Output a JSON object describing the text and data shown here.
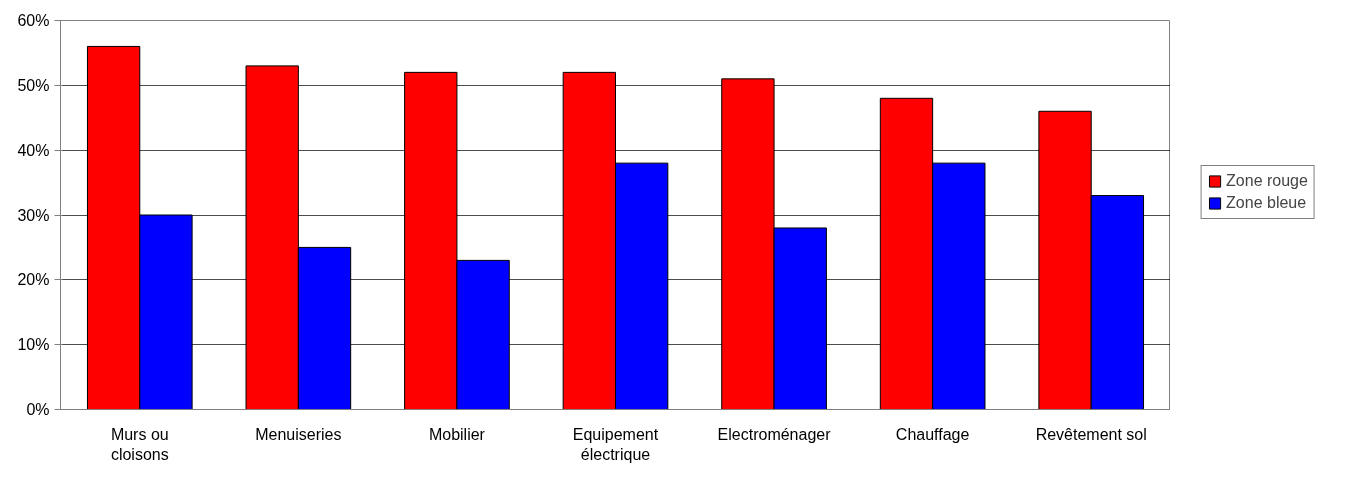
{
  "chart_data": {
    "type": "bar",
    "categories": [
      "Murs ou cloisons",
      "Menuiseries",
      "Mobilier",
      "Equipement électrique",
      "Electroménager",
      "Chauffage",
      "Revêtement sol"
    ],
    "series": [
      {
        "name": "Zone rouge",
        "color": "#ff0000",
        "values": [
          56,
          53,
          52,
          52,
          51,
          48,
          46
        ]
      },
      {
        "name": "Zone bleue",
        "color": "#0000ff",
        "values": [
          30,
          25,
          23,
          38,
          28,
          38,
          33
        ]
      }
    ],
    "ylim": [
      0,
      60
    ],
    "yticks": [
      {
        "value": 0,
        "label": "0%"
      },
      {
        "value": 10,
        "label": "10%"
      },
      {
        "value": 20,
        "label": "20%"
      },
      {
        "value": 30,
        "label": "30%"
      },
      {
        "value": 40,
        "label": "40%"
      },
      {
        "value": 50,
        "label": "50%"
      },
      {
        "value": 60,
        "label": "60%"
      }
    ],
    "grid": "y",
    "legend": "right"
  }
}
